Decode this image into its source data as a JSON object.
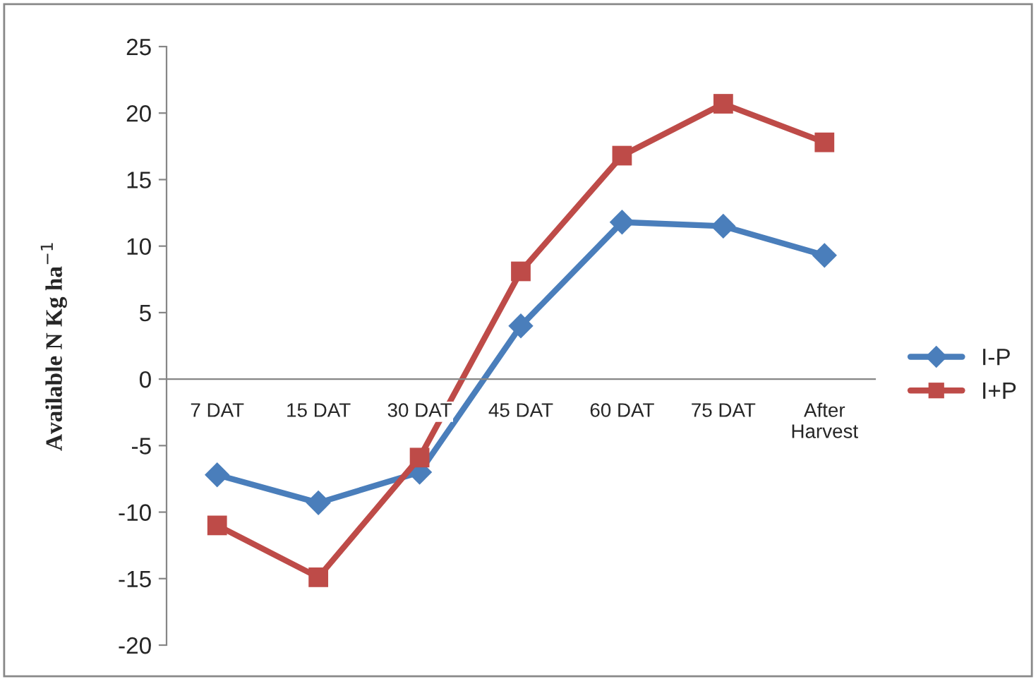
{
  "chart_data": {
    "type": "line",
    "ylabel": "Available N Kg ha$^{−1}$",
    "categories": [
      "7 DAT",
      "15 DAT",
      "30 DAT",
      "45 DAT",
      "60 DAT",
      "75 DAT",
      "After\nHarvest"
    ],
    "series": [
      {
        "name": "I-P",
        "color": "#4a7ebb",
        "marker": "diamond",
        "values": [
          -7.2,
          -9.3,
          -7.0,
          4.0,
          11.8,
          11.5,
          9.3
        ]
      },
      {
        "name": "I+P",
        "color": "#be4b48",
        "marker": "square",
        "values": [
          -11.0,
          -14.9,
          -5.9,
          8.1,
          16.8,
          20.7,
          17.8
        ]
      }
    ],
    "ylim": [
      -20,
      25
    ],
    "yticks": [
      -20,
      -15,
      -10,
      -5,
      0,
      5,
      10,
      15,
      20,
      25
    ],
    "grid": false,
    "legend": "right",
    "line_style": "solid"
  }
}
